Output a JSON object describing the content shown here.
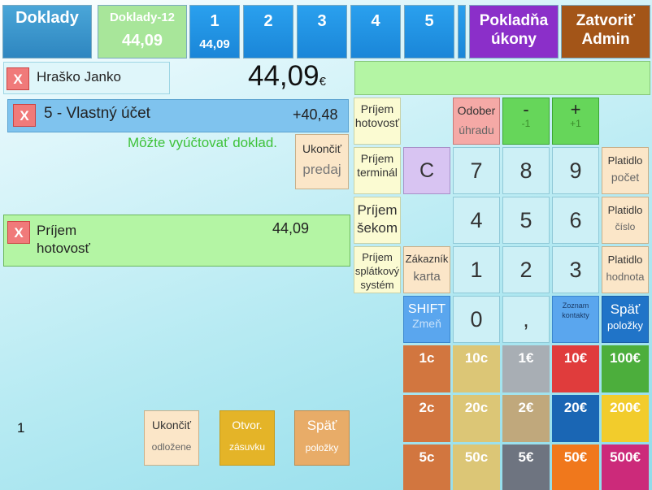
{
  "topbar": {
    "doklady": "Doklady",
    "doklady12_title": "Doklady-12",
    "doklady12_amount": "44,09",
    "tabs": [
      {
        "num": "1",
        "amount": "44,09"
      },
      {
        "num": "2",
        "amount": ""
      },
      {
        "num": "3",
        "amount": ""
      },
      {
        "num": "4",
        "amount": ""
      },
      {
        "num": "5",
        "amount": ""
      }
    ],
    "pokladna_line1": "Pokladňa",
    "pokladna_line2": "úkony",
    "zatvorit_line1": "Zatvoriť",
    "zatvorit_line2": "Admin"
  },
  "customer": {
    "x": "X",
    "name": "Hraško Janko"
  },
  "total": {
    "value": "44,09",
    "currency": "€"
  },
  "account": {
    "x": "X",
    "label": "5 - Vlastný účet",
    "amount": "+40,48"
  },
  "message": "Môžte vyúčtovať doklad.",
  "ukoncit_predaj": {
    "line1": "Ukončiť",
    "line2": "predaj"
  },
  "payment": {
    "x": "X",
    "line1": "Príjem",
    "line2": "hotovosť",
    "amount": "44,09"
  },
  "left_bottom": {
    "counter": "1"
  },
  "bottom_buttons": [
    {
      "line1": "Ukončiť",
      "line2": "odložene"
    },
    {
      "line1": "Otvor.",
      "line2": "zásuvku"
    },
    {
      "line1": "Späť",
      "line2": "položky"
    }
  ],
  "side_buttons": [
    {
      "line1": "Príjem",
      "line2": "hotovosť",
      "line3": ""
    },
    {
      "line1": "Príjem",
      "line2": "terminál",
      "line3": ""
    },
    {
      "line1": "Príjem",
      "line2": "šekom",
      "line3": ""
    },
    {
      "line1": "Príjem",
      "line2": "splátkový",
      "line3": "systém"
    }
  ],
  "keypad": {
    "odober_line1": "Odober",
    "odober_line2": "úhradu",
    "minus": "-",
    "minus_sub": "-1",
    "plus": "+",
    "plus_sub": "+1",
    "clear": "C",
    "digits": [
      "7",
      "8",
      "9",
      "4",
      "5",
      "6",
      "1",
      "2",
      "3",
      "0",
      ","
    ],
    "zakaznik_line1": "Zákazník",
    "zakaznik_line2": "karta",
    "shift_line1": "SHIFT",
    "shift_line2": "Zmeň",
    "zoznam_line1": "Zoznam",
    "zoznam_line2": "kontakty",
    "platidlo_pocet_1": "Platidlo",
    "platidlo_pocet_2": "počet",
    "platidlo_cislo_1": "Platidlo",
    "platidlo_cislo_2": "číslo",
    "platidlo_hodnota_1": "Platidlo",
    "platidlo_hodnota_2": "hodnota",
    "spat_line1": "Späť",
    "spat_line2": "položky"
  },
  "coins": [
    "1c",
    "10c",
    "1€",
    "10€",
    "100€",
    "2c",
    "20c",
    "2€",
    "20€",
    "200€",
    "5c",
    "50c",
    "5€",
    "50€",
    "500€"
  ],
  "colors": {
    "coin_row1": [
      "#d2763f",
      "#dcc676",
      "#a8aeb4",
      "#e03c3c",
      "#4cae3c"
    ],
    "coin_row2": [
      "#d2763f",
      "#dcc676",
      "#c0a87c",
      "#1a66b4",
      "#f2cc2c"
    ],
    "coin_row3": [
      "#d2763f",
      "#dcc676",
      "#6e7480",
      "#f0781c",
      "#cc2a7a"
    ]
  }
}
